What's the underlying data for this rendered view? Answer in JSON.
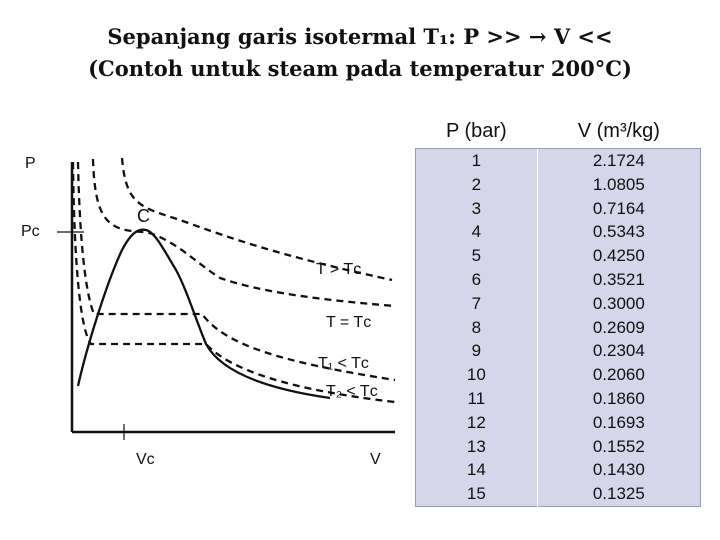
{
  "title": {
    "line1": "Sepanjang garis isotermal T₁: P >> → V <<",
    "line2": "(Contoh untuk steam pada temperatur 200°C)"
  },
  "diagram": {
    "p_axis": "P",
    "pc_axis": "Pᴄ",
    "vc_axis": "Vᴄ",
    "v_axis": "V",
    "critical_point": "C",
    "curve_labels": {
      "t_gt": "T > Tᴄ",
      "t_eq": "T = Tᴄ",
      "t1": "T₁ < Tᴄ",
      "t2": "T₂ < Tᴄ"
    }
  },
  "table": {
    "headers": [
      "P (bar)",
      "V (m³/kg)"
    ],
    "rows": [
      [
        "1",
        "2.1724"
      ],
      [
        "2",
        "1.0805"
      ],
      [
        "3",
        "0.7164"
      ],
      [
        "4",
        "0.5343"
      ],
      [
        "5",
        "0.4250"
      ],
      [
        "6",
        "0.3521"
      ],
      [
        "7",
        "0.3000"
      ],
      [
        "8",
        "0.2609"
      ],
      [
        "9",
        "0.2304"
      ],
      [
        "10",
        "0.2060"
      ],
      [
        "11",
        "0.1860"
      ],
      [
        "12",
        "0.1693"
      ],
      [
        "13",
        "0.1552"
      ],
      [
        "14",
        "0.1430"
      ],
      [
        "15",
        "0.1325"
      ]
    ]
  }
}
